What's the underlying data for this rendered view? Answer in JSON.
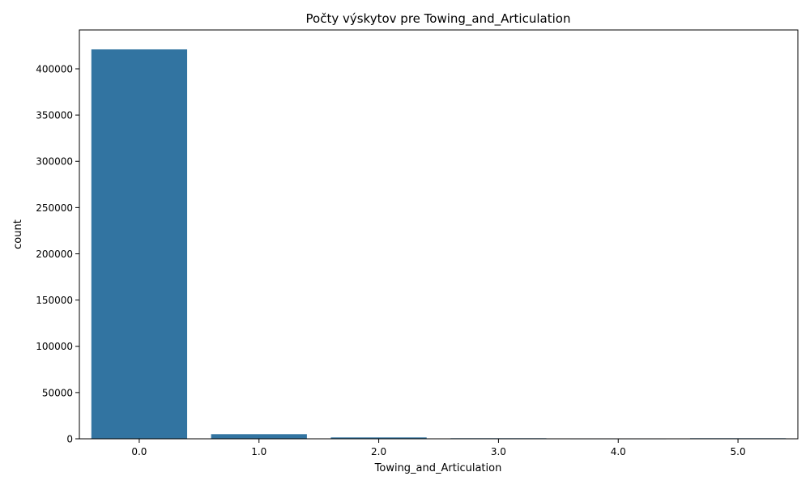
{
  "chart_data": {
    "type": "bar",
    "title": "Počty výskytov pre Towing_and_Articulation",
    "xlabel": "Towing_and_Articulation",
    "ylabel": "count",
    "categories": [
      "0.0",
      "1.0",
      "2.0",
      "3.0",
      "4.0",
      "5.0"
    ],
    "values": [
      421000,
      5000,
      1500,
      600,
      400,
      600
    ],
    "ylim": [
      0,
      442000
    ],
    "yticks": [
      0,
      50000,
      100000,
      150000,
      200000,
      250000,
      300000,
      350000,
      400000
    ],
    "grid": false,
    "legend": "none",
    "bar_color": "#3274a1"
  }
}
